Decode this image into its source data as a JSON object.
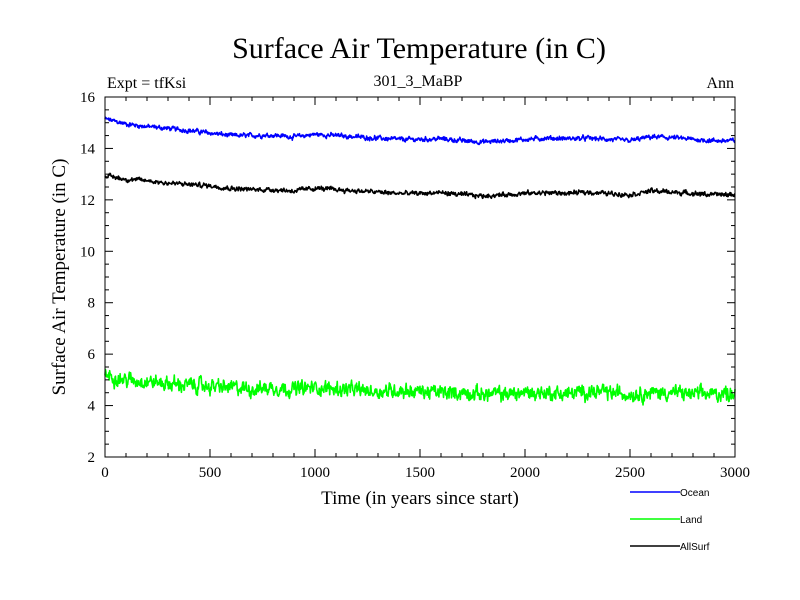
{
  "chart_data": {
    "type": "line",
    "title": "Surface Air Temperature (in C)",
    "subtitle": "301_3_MaBP",
    "left_label": "Expt = tfKsi",
    "right_label": "Ann",
    "xlabel": "Time (in years since start)",
    "ylabel": "Surface Air Temperature (in C)",
    "xlim": [
      0,
      3000
    ],
    "ylim": [
      2,
      16
    ],
    "xticks": [
      0,
      500,
      1000,
      1500,
      2000,
      2500,
      3000
    ],
    "yticks": [
      2,
      4,
      6,
      8,
      10,
      12,
      14,
      16
    ],
    "grid": false,
    "legend_position": "bottom-right",
    "x": [
      0,
      100,
      200,
      300,
      400,
      500,
      600,
      700,
      800,
      900,
      1000,
      1100,
      1200,
      1300,
      1400,
      1500,
      1600,
      1700,
      1800,
      1900,
      2000,
      2100,
      2200,
      2300,
      2400,
      2500,
      2600,
      2700,
      2800,
      2900,
      3000
    ],
    "series": [
      {
        "name": "Ocean",
        "color": "#0000ff",
        "noise": 0.08,
        "values": [
          15.15,
          14.95,
          14.85,
          14.78,
          14.7,
          14.6,
          14.5,
          14.5,
          14.52,
          14.45,
          14.55,
          14.5,
          14.45,
          14.4,
          14.35,
          14.35,
          14.38,
          14.3,
          14.25,
          14.3,
          14.35,
          14.4,
          14.38,
          14.4,
          14.35,
          14.3,
          14.45,
          14.42,
          14.35,
          14.3,
          14.3
        ]
      },
      {
        "name": "Land",
        "color": "#00ff00",
        "noise": 0.25,
        "values": [
          5.2,
          5.0,
          4.95,
          4.85,
          4.8,
          4.75,
          4.7,
          4.65,
          4.7,
          4.65,
          4.7,
          4.65,
          4.6,
          4.55,
          4.6,
          4.55,
          4.5,
          4.5,
          4.45,
          4.45,
          4.5,
          4.5,
          4.45,
          4.55,
          4.5,
          4.45,
          4.5,
          4.5,
          4.45,
          4.45,
          4.5
        ]
      },
      {
        "name": "AllSurf",
        "color": "#000000",
        "noise": 0.08,
        "values": [
          12.95,
          12.8,
          12.75,
          12.65,
          12.6,
          12.55,
          12.45,
          12.4,
          12.4,
          12.35,
          12.45,
          12.4,
          12.35,
          12.3,
          12.25,
          12.25,
          12.28,
          12.2,
          12.15,
          12.2,
          12.25,
          12.28,
          12.25,
          12.3,
          12.25,
          12.2,
          12.35,
          12.3,
          12.25,
          12.2,
          12.2
        ]
      }
    ]
  }
}
